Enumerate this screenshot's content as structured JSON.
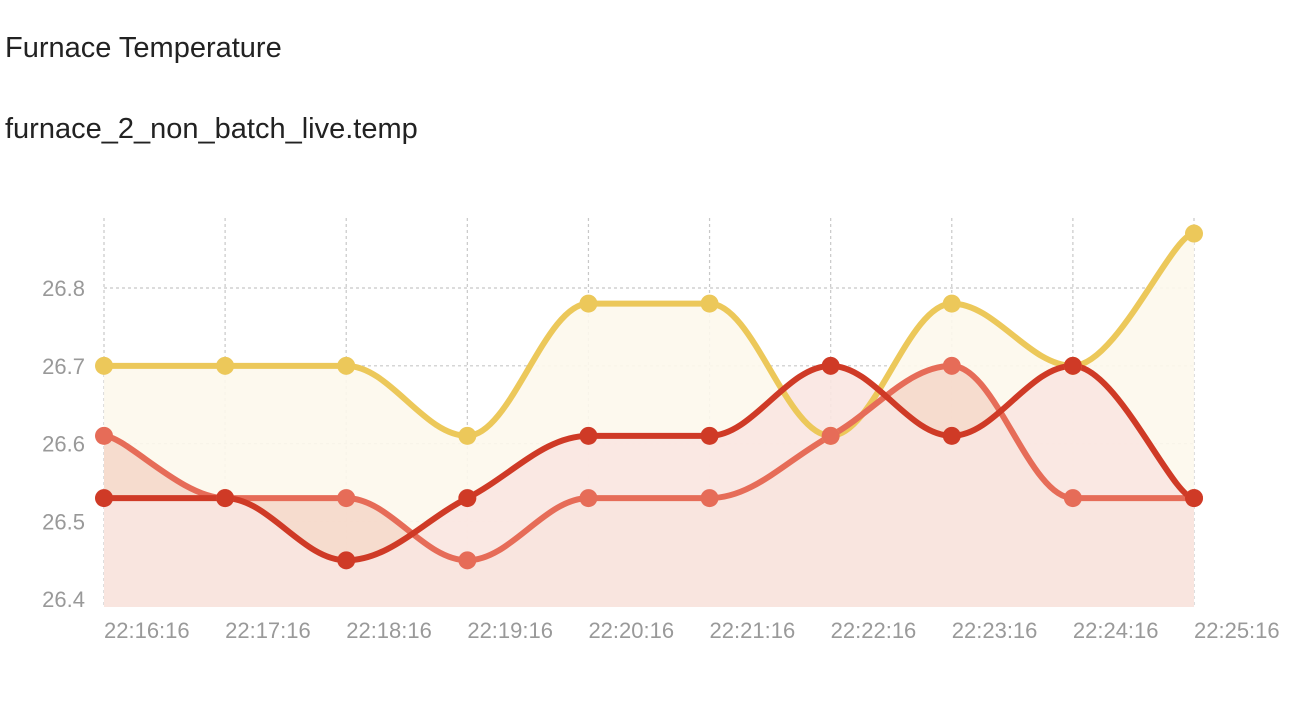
{
  "header": {
    "title": "Furnace Temperature",
    "subtitle": "furnace_2_non_batch_live.temp"
  },
  "chart_data": {
    "type": "area",
    "title": "Furnace Temperature",
    "subtitle": "furnace_2_non_batch_live.temp",
    "xlabel": "",
    "ylabel": "",
    "categories": [
      "22:16:16",
      "22:17:16",
      "22:18:16",
      "22:19:16",
      "22:20:16",
      "22:21:16",
      "22:22:16",
      "22:23:16",
      "22:24:16",
      "22:25:16"
    ],
    "y_ticks": [
      "26.4",
      "26.5",
      "26.6",
      "26.7",
      "26.8"
    ],
    "ylim": [
      26.39,
      26.89
    ],
    "grid": true,
    "legend": "none",
    "series": [
      {
        "color": "#ecc85a",
        "fill": "#fdf8ec",
        "values": [
          26.7,
          26.7,
          26.7,
          26.61,
          26.78,
          26.78,
          26.61,
          26.78,
          26.7,
          26.87
        ]
      },
      {
        "color": "#e66c58",
        "fill": "#f5d8ca",
        "values": [
          26.61,
          26.53,
          26.53,
          26.45,
          26.53,
          26.53,
          26.61,
          26.7,
          26.53,
          26.53
        ]
      },
      {
        "color": "#cf3a26",
        "fill": "#f9e6e1",
        "values": [
          26.53,
          26.53,
          26.45,
          26.53,
          26.61,
          26.61,
          26.7,
          26.61,
          26.7,
          26.53
        ]
      }
    ]
  }
}
